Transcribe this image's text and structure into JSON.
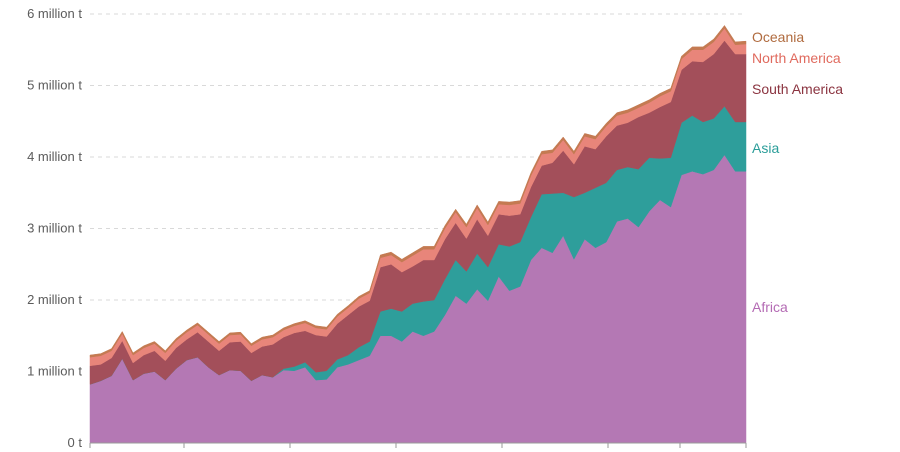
{
  "chart_data": {
    "type": "area",
    "stacked": true,
    "y_ticks": [
      "0 t",
      "1 million t",
      "2 million t",
      "3 million t",
      "4 million t",
      "5 million t",
      "6 million t"
    ],
    "ylim": [
      0,
      6000000
    ],
    "grid": "horizontal-dashed",
    "legend": "right-inline-labels",
    "x_count": 62,
    "series": [
      {
        "name": "Africa",
        "color": "#b478b4",
        "values": [
          820000,
          870000,
          940000,
          1180000,
          880000,
          970000,
          1000000,
          880000,
          1040000,
          1160000,
          1200000,
          1060000,
          950000,
          1020000,
          1010000,
          870000,
          950000,
          920000,
          1020000,
          1010000,
          1060000,
          880000,
          890000,
          1060000,
          1100000,
          1160000,
          1220000,
          1500000,
          1500000,
          1420000,
          1560000,
          1500000,
          1560000,
          1790000,
          2060000,
          1950000,
          2150000,
          1990000,
          2330000,
          2130000,
          2190000,
          2560000,
          2730000,
          2660000,
          2900000,
          2570000,
          2850000,
          2730000,
          2810000,
          3100000,
          3140000,
          3020000,
          3240000,
          3400000,
          3300000,
          3750000,
          3800000,
          3760000,
          3820000,
          4030000,
          3800000,
          3800000
        ]
      },
      {
        "name": "Asia",
        "color": "#2e9e9b",
        "values": [
          0,
          0,
          0,
          0,
          0,
          0,
          0,
          0,
          0,
          0,
          0,
          0,
          0,
          0,
          0,
          0,
          0,
          0,
          20000,
          60000,
          70000,
          110000,
          120000,
          110000,
          130000,
          180000,
          200000,
          340000,
          380000,
          420000,
          390000,
          480000,
          440000,
          500000,
          500000,
          450000,
          500000,
          470000,
          450000,
          620000,
          620000,
          600000,
          750000,
          830000,
          600000,
          870000,
          650000,
          840000,
          830000,
          720000,
          720000,
          810000,
          750000,
          580000,
          690000,
          730000,
          780000,
          730000,
          720000,
          680000,
          690000,
          690000
        ]
      },
      {
        "name": "South America",
        "color": "#a34f5a",
        "values": [
          260000,
          230000,
          250000,
          250000,
          240000,
          260000,
          290000,
          270000,
          290000,
          290000,
          350000,
          360000,
          340000,
          390000,
          410000,
          390000,
          400000,
          460000,
          440000,
          470000,
          440000,
          520000,
          480000,
          500000,
          560000,
          570000,
          570000,
          620000,
          620000,
          550000,
          520000,
          580000,
          560000,
          560000,
          520000,
          460000,
          480000,
          440000,
          420000,
          430000,
          390000,
          420000,
          400000,
          430000,
          590000,
          460000,
          650000,
          540000,
          650000,
          620000,
          620000,
          730000,
          630000,
          720000,
          780000,
          740000,
          760000,
          840000,
          900000,
          920000,
          950000,
          950000
        ]
      },
      {
        "name": "North America",
        "color": "#e8857a",
        "values": [
          120000,
          120000,
          100000,
          100000,
          110000,
          100000,
          100000,
          110000,
          100000,
          100000,
          100000,
          100000,
          100000,
          100000,
          100000,
          100000,
          100000,
          100000,
          100000,
          100000,
          110000,
          100000,
          100000,
          100000,
          100000,
          110000,
          110000,
          130000,
          130000,
          140000,
          150000,
          150000,
          150000,
          150000,
          150000,
          160000,
          160000,
          150000,
          140000,
          150000,
          150000,
          160000,
          160000,
          140000,
          150000,
          140000,
          140000,
          140000,
          140000,
          140000,
          140000,
          130000,
          140000,
          150000,
          150000,
          150000,
          160000,
          170000,
          170000,
          170000,
          130000,
          140000
        ]
      },
      {
        "name": "Oceania",
        "color": "#c47a52",
        "values": [
          30000,
          30000,
          30000,
          30000,
          30000,
          30000,
          30000,
          30000,
          30000,
          30000,
          30000,
          30000,
          30000,
          30000,
          30000,
          30000,
          30000,
          30000,
          30000,
          30000,
          30000,
          30000,
          30000,
          30000,
          30000,
          30000,
          30000,
          40000,
          40000,
          40000,
          40000,
          40000,
          40000,
          40000,
          40000,
          40000,
          40000,
          40000,
          40000,
          40000,
          40000,
          40000,
          40000,
          40000,
          40000,
          40000,
          40000,
          40000,
          40000,
          40000,
          40000,
          40000,
          40000,
          40000,
          40000,
          40000,
          40000,
          40000,
          40000,
          40000,
          40000,
          40000
        ]
      }
    ]
  }
}
